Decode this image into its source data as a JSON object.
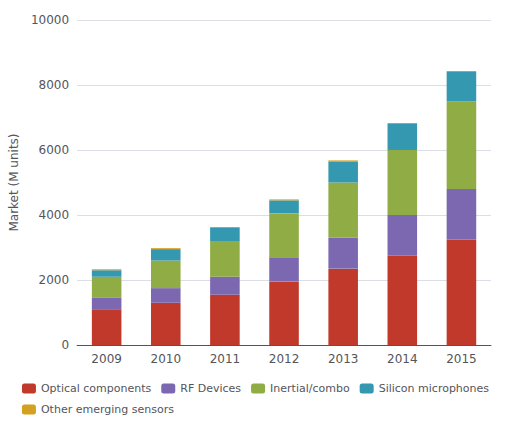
{
  "chart_data": {
    "type": "bar",
    "stacked": true,
    "categories": [
      "2009",
      "2010",
      "2011",
      "2012",
      "2013",
      "2014",
      "2015"
    ],
    "series": [
      {
        "name": "Optical components",
        "color": "#c0392b",
        "values": [
          1100,
          1300,
          1550,
          1950,
          2350,
          2750,
          3250
        ]
      },
      {
        "name": "RF Devices",
        "color": "#7b68b0",
        "values": [
          350,
          450,
          550,
          750,
          950,
          1250,
          1550
        ]
      },
      {
        "name": "Inertial/combo",
        "color": "#8fad44",
        "values": [
          650,
          850,
          1100,
          1350,
          1700,
          2000,
          2700
        ]
      },
      {
        "name": "Silicon microphones",
        "color": "#3498b0",
        "values": [
          200,
          350,
          400,
          400,
          650,
          800,
          900
        ]
      },
      {
        "name": "Other emerging sensors",
        "color": "#d4a020",
        "values": [
          30,
          30,
          30,
          30,
          30,
          30,
          30
        ]
      }
    ],
    "ylabel": "Market (M units)",
    "ylim": [
      0,
      10000
    ],
    "yticks": [
      0,
      2000,
      4000,
      6000,
      8000,
      10000
    ],
    "grid": true,
    "legend": "bottom"
  }
}
